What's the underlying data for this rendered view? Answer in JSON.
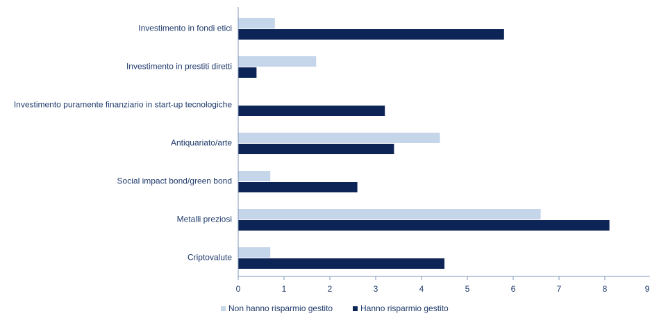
{
  "chart_data": {
    "type": "bar",
    "orientation": "horizontal",
    "categories": [
      "Investimento in fondi etici",
      "Investimento in prestiti diretti",
      "Investimento puramente finanziario in start-up tecnologiche",
      "Antiquariato/arte",
      "Social impact bond/green bond",
      "Metalli preziosi",
      "Criptovalute"
    ],
    "series": [
      {
        "name": "Non hanno risparmio gestito",
        "color": "#c5d5ea",
        "values": [
          0.8,
          1.7,
          0,
          4.4,
          0.7,
          6.6,
          0.7
        ]
      },
      {
        "name": "Hanno risparmio gestito",
        "color": "#0d2456",
        "values": [
          5.8,
          0.4,
          3.2,
          3.4,
          2.6,
          8.1,
          4.5
        ]
      }
    ],
    "xlim": [
      0,
      9
    ],
    "ticks": [
      "0",
      "1",
      "2",
      "3",
      "4",
      "5",
      "6",
      "7",
      "8",
      "9"
    ],
    "grid": false,
    "legend_position": "bottom-left"
  }
}
